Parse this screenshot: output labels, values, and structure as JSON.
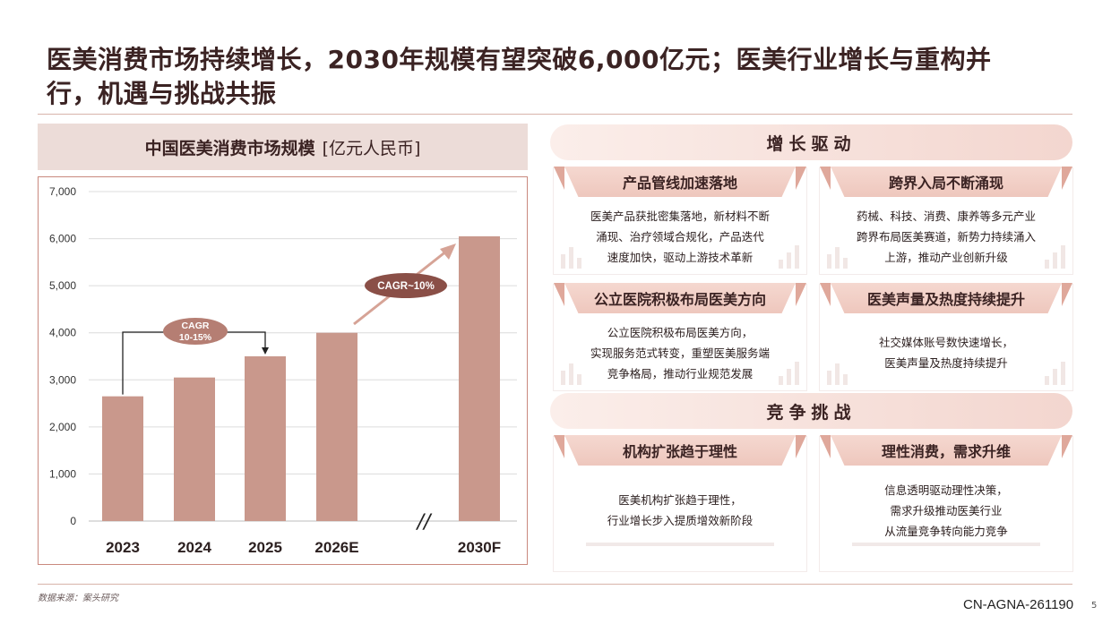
{
  "title_line1": "医美消费市场持续增长，2030年规模有望突破6,000亿元；医美行业增长与重构并",
  "title_line2": "行，机遇与挑战共振",
  "chart_header": {
    "title": "中国医美消费市场规模",
    "unit": "[亿元人民币]"
  },
  "chart_data": {
    "type": "bar",
    "categories": [
      "2023",
      "2024",
      "2025",
      "2026E",
      "2030F"
    ],
    "values": [
      2650,
      3050,
      3500,
      4000,
      6050
    ],
    "ylim": [
      0,
      7000
    ],
    "yticks": [
      "0",
      "1,000",
      "2,000",
      "3,000",
      "4,000",
      "5,000",
      "6,000",
      "7,000"
    ],
    "ytick_values": [
      0,
      1000,
      2000,
      3000,
      4000,
      5000,
      6000,
      7000
    ],
    "grid": true,
    "bar_color": "#c9988c",
    "axis_break": "//",
    "annotations": {
      "cagr1_line1": "CAGR",
      "cagr1_line2": "10-15%",
      "cagr2": "CAGR~10%"
    }
  },
  "sections": {
    "growth": "增长驱动",
    "challenge": "竞争挑战"
  },
  "cards": [
    {
      "title": "产品管线加速落地",
      "lines": [
        "医美产品获批密集落地，新材料不断",
        "涌现、治疗领域合规化，产品迭代",
        "速度加快，驱动上游技术革新"
      ]
    },
    {
      "title": "跨界入局不断涌现",
      "lines": [
        "药械、科技、消费、康养等多元产业",
        "跨界布局医美赛道，新势力持续涌入",
        "上游，推动产业创新升级"
      ]
    },
    {
      "title": "公立医院积极布局医美方向",
      "lines": [
        "公立医院积极布局医美方向，",
        "实现服务范式转变，重塑医美服务端",
        "竞争格局，推动行业规范发展"
      ]
    },
    {
      "title": "医美声量及热度持续提升",
      "lines": [
        "社交媒体账号数快速增长，",
        "医美声量及热度持续提升"
      ]
    },
    {
      "title": "机构扩张趋于理性",
      "lines": [
        "医美机构扩张趋于理性，",
        "行业增长步入提质增效新阶段"
      ]
    },
    {
      "title": "理性消费，需求升维",
      "lines": [
        "信息透明驱动理性决策，",
        "需求升级推动医美行业",
        "从流量竞争转向能力竞争"
      ]
    }
  ],
  "footer": {
    "source": "数据来源：案头研究",
    "code": "CN-AGNA-261190",
    "page": "5"
  }
}
